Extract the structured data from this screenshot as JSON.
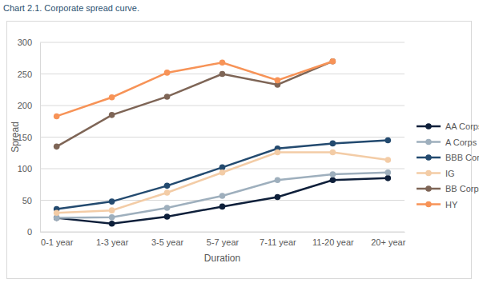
{
  "chart_data": {
    "type": "line",
    "title": "Chart 2.1. Corporate spread curve.",
    "x_label": "Duration",
    "y_label": "Spread",
    "categories": [
      "0-1 year",
      "1-3 year",
      "3-5 year",
      "5-7 year",
      "7-11 year",
      "11-20 year",
      "20+ year"
    ],
    "series": [
      {
        "name": "AA Corps",
        "color": "#0e1f3a",
        "values": [
          22,
          13,
          24,
          40,
          55,
          82,
          85
        ]
      },
      {
        "name": "A Corps",
        "color": "#9eafbd",
        "values": [
          22,
          23,
          38,
          57,
          82,
          91,
          94
        ]
      },
      {
        "name": "BBB Corps",
        "color": "#234a6f",
        "values": [
          36,
          48,
          73,
          102,
          132,
          140,
          145
        ]
      },
      {
        "name": "IG",
        "color": "#f3cca6",
        "values": [
          30,
          34,
          62,
          94,
          126,
          126,
          114
        ]
      },
      {
        "name": "BB Corps",
        "color": "#7e6556",
        "values": [
          135,
          185,
          214,
          250,
          233,
          270,
          null
        ]
      },
      {
        "name": "HY",
        "color": "#f79357",
        "values": [
          183,
          213,
          252,
          268,
          240,
          270,
          null
        ]
      }
    ],
    "ylim": [
      0,
      300
    ],
    "yticks": [
      0,
      50,
      100,
      150,
      200,
      250,
      300
    ],
    "grid": true,
    "legend": "right",
    "marker": "circle"
  }
}
